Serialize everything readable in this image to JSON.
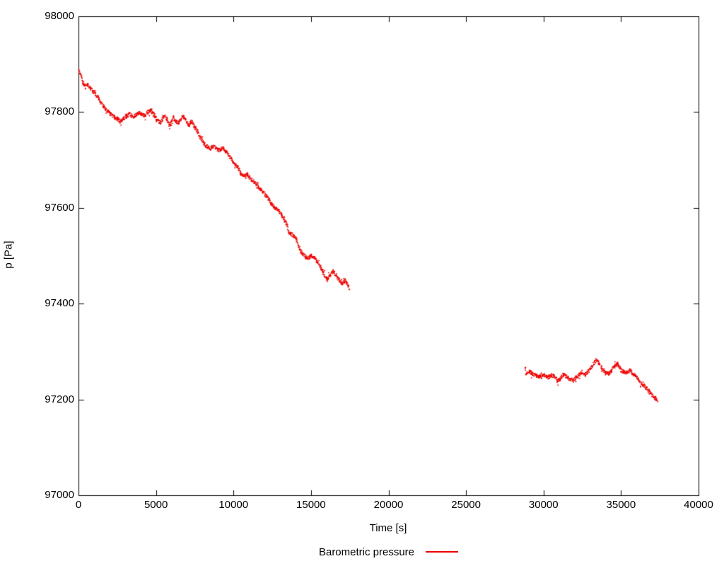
{
  "chart_data": {
    "type": "scatter",
    "title": "",
    "xlabel": "Time [s]",
    "ylabel": "p [Pa]",
    "xlim": [
      0,
      40000
    ],
    "ylim": [
      97000,
      98000
    ],
    "grid": false,
    "legend_position": "bottom-center",
    "x_ticks": [
      0,
      5000,
      10000,
      15000,
      20000,
      25000,
      30000,
      35000,
      40000
    ],
    "x_tick_labels": [
      "0",
      "5000",
      "10000",
      "15000",
      "20000",
      "25000",
      "30000",
      "35000",
      "40000"
    ],
    "y_ticks": [
      97000,
      97200,
      97400,
      97600,
      97800,
      98000
    ],
    "y_tick_labels": [
      "97000",
      "97200",
      "97400",
      "97600",
      "97800",
      "98000"
    ],
    "legend": [
      {
        "label": "Barometric pressure",
        "color": "#ee0000"
      }
    ],
    "series": [
      {
        "name": "Barometric pressure",
        "color": "#ee0000",
        "style": "dots",
        "segments": [
          [
            [
              0,
              97888
            ],
            [
              150,
              97878
            ],
            [
              300,
              97862
            ],
            [
              450,
              97852
            ],
            [
              600,
              97858
            ],
            [
              750,
              97850
            ],
            [
              900,
              97845
            ],
            [
              1100,
              97838
            ],
            [
              1300,
              97828
            ],
            [
              1500,
              97818
            ],
            [
              1700,
              97808
            ],
            [
              1900,
              97800
            ],
            [
              2100,
              97795
            ],
            [
              2300,
              97790
            ],
            [
              2500,
              97786
            ],
            [
              2700,
              97781
            ],
            [
              2900,
              97786
            ],
            [
              3100,
              97792
            ],
            [
              3300,
              97796
            ],
            [
              3500,
              97790
            ],
            [
              3700,
              97793
            ],
            [
              3900,
              97799
            ],
            [
              4100,
              97795
            ],
            [
              4300,
              97792
            ],
            [
              4500,
              97800
            ],
            [
              4700,
              97804
            ],
            [
              4900,
              97793
            ],
            [
              5100,
              97782
            ],
            [
              5300,
              97778
            ],
            [
              5500,
              97793
            ],
            [
              5700,
              97785
            ],
            [
              5900,
              97769
            ],
            [
              6100,
              97789
            ],
            [
              6300,
              97780
            ],
            [
              6500,
              97776
            ],
            [
              6700,
              97793
            ],
            [
              6900,
              97787
            ],
            [
              7100,
              97772
            ],
            [
              7300,
              97781
            ],
            [
              7500,
              97768
            ],
            [
              7700,
              97758
            ],
            [
              7900,
              97746
            ],
            [
              8100,
              97734
            ],
            [
              8300,
              97728
            ],
            [
              8500,
              97724
            ],
            [
              8700,
              97729
            ],
            [
              8900,
              97724
            ],
            [
              9100,
              97720
            ],
            [
              9300,
              97726
            ],
            [
              9500,
              97718
            ],
            [
              9700,
              97710
            ],
            [
              9900,
              97700
            ],
            [
              10100,
              97690
            ],
            [
              10300,
              97684
            ],
            [
              10500,
              97670
            ],
            [
              10700,
              97666
            ],
            [
              10900,
              97670
            ],
            [
              11100,
              97660
            ],
            [
              11300,
              97655
            ],
            [
              11500,
              97650
            ],
            [
              11700,
              97641
            ],
            [
              11900,
              97634
            ],
            [
              12100,
              97625
            ],
            [
              12300,
              97617
            ],
            [
              12500,
              97606
            ],
            [
              12700,
              97600
            ],
            [
              12900,
              97596
            ],
            [
              13100,
              97586
            ],
            [
              13300,
              97574
            ],
            [
              13450,
              97565
            ],
            [
              13550,
              97550
            ],
            [
              13700,
              97546
            ],
            [
              13900,
              97541
            ],
            [
              14050,
              97536
            ],
            [
              14200,
              97519
            ],
            [
              14400,
              97506
            ],
            [
              14600,
              97500
            ],
            [
              14800,
              97494
            ],
            [
              15000,
              97500
            ],
            [
              15200,
              97497
            ],
            [
              15400,
              97488
            ],
            [
              15600,
              97478
            ],
            [
              15800,
              97464
            ],
            [
              16000,
              97452
            ],
            [
              16200,
              97456
            ],
            [
              16400,
              97468
            ],
            [
              16600,
              97460
            ],
            [
              16800,
              97450
            ],
            [
              17000,
              97441
            ],
            [
              17200,
              97450
            ],
            [
              17400,
              97437
            ],
            [
              17500,
              97432
            ]
          ],
          [
            [
              28800,
              97268
            ],
            [
              28900,
              97252
            ],
            [
              29100,
              97258
            ],
            [
              29300,
              97253
            ],
            [
              29500,
              97250
            ],
            [
              29700,
              97248
            ],
            [
              29900,
              97252
            ],
            [
              30100,
              97250
            ],
            [
              30300,
              97246
            ],
            [
              30500,
              97250
            ],
            [
              30700,
              97248
            ],
            [
              30900,
              97239
            ],
            [
              31100,
              97243
            ],
            [
              31300,
              97252
            ],
            [
              31500,
              97248
            ],
            [
              31700,
              97242
            ],
            [
              31900,
              97240
            ],
            [
              32100,
              97246
            ],
            [
              32300,
              97250
            ],
            [
              32500,
              97257
            ],
            [
              32700,
              97252
            ],
            [
              32900,
              97260
            ],
            [
              33100,
              97268
            ],
            [
              33300,
              97278
            ],
            [
              33450,
              97282
            ],
            [
              33600,
              97274
            ],
            [
              33800,
              97262
            ],
            [
              34000,
              97255
            ],
            [
              34200,
              97254
            ],
            [
              34400,
              97260
            ],
            [
              34600,
              97270
            ],
            [
              34800,
              97274
            ],
            [
              35000,
              97262
            ],
            [
              35200,
              97256
            ],
            [
              35400,
              97256
            ],
            [
              35600,
              97262
            ],
            [
              35800,
              97252
            ],
            [
              36000,
              97247
            ],
            [
              36200,
              97238
            ],
            [
              36400,
              97230
            ],
            [
              36600,
              97226
            ],
            [
              36800,
              97216
            ],
            [
              37000,
              97210
            ],
            [
              37200,
              97202
            ],
            [
              37350,
              97197
            ]
          ]
        ]
      }
    ]
  }
}
